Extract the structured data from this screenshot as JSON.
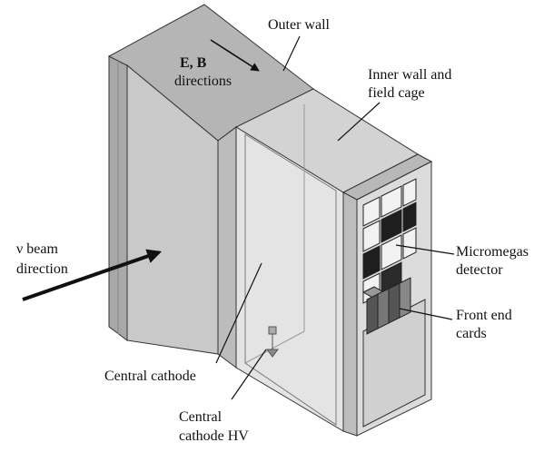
{
  "labels": {
    "outer_wall": "Outer wall",
    "eb_bold": "E, B",
    "eb_line2": "directions",
    "inner_wall_1": "Inner wall and",
    "inner_wall_2": "field cage",
    "beam_1": "ν beam",
    "beam_2": "direction",
    "micromegas_1": "Micromegas",
    "micromegas_2": "detector",
    "front_end_1": "Front end",
    "front_end_2": "cards",
    "central_cathode": "Central cathode",
    "cathode_hv_1": "Central",
    "cathode_hv_2": "cathode HV"
  },
  "colors": {
    "outer_wall_front": "#c8c8c8",
    "outer_wall_top": "#b3b3b3",
    "outer_wall_side": "#9a9a9a",
    "inner_panel": "#d9d9d9",
    "end_plate": "#cfcfcf",
    "detector_pad": "#1a1a1a",
    "outline": "#333333",
    "arrow": "#111111"
  }
}
